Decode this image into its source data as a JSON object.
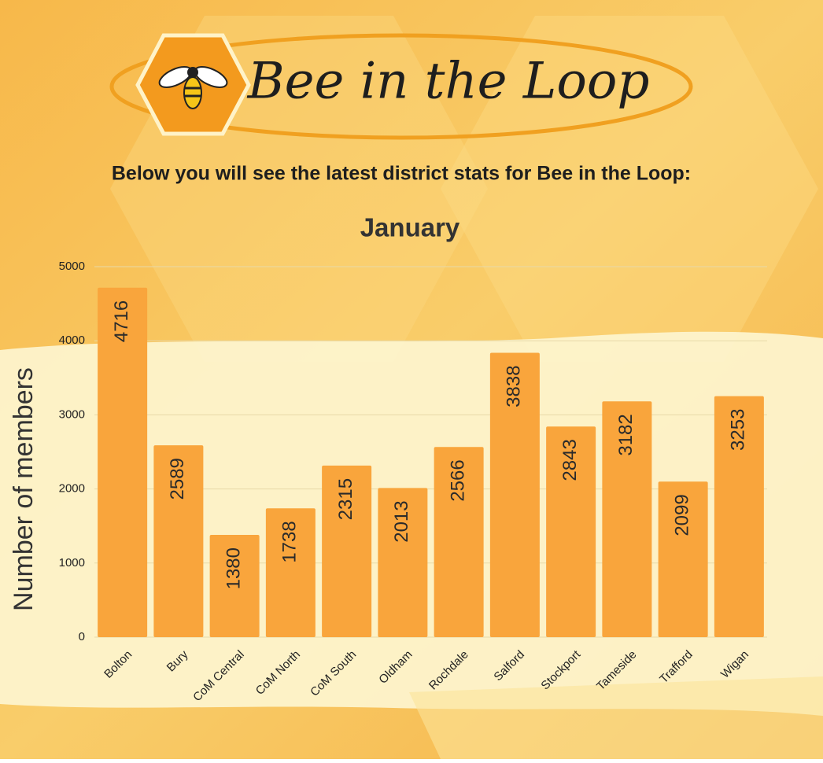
{
  "logo_text": "Bee in the Loop",
  "heading": "Below you will see the latest district stats for Bee in the Loop:",
  "chart_data": {
    "type": "bar",
    "title": "January",
    "y_label": "Number of members",
    "categories": [
      "Bolton",
      "Bury",
      "CoM Central",
      "CoM North",
      "CoM South",
      "Oldham",
      "Rochdale",
      "Salford",
      "Stockport",
      "Tameside",
      "Trafford",
      "Wigan"
    ],
    "values": [
      4716,
      2589,
      1380,
      1738,
      2315,
      2013,
      2566,
      3838,
      2843,
      3182,
      2099,
      3253
    ],
    "color": "#f9a53c",
    "ylim": [
      0,
      5000
    ],
    "yticks": [
      0,
      1000,
      2000,
      3000,
      4000,
      5000
    ],
    "grid": true
  }
}
